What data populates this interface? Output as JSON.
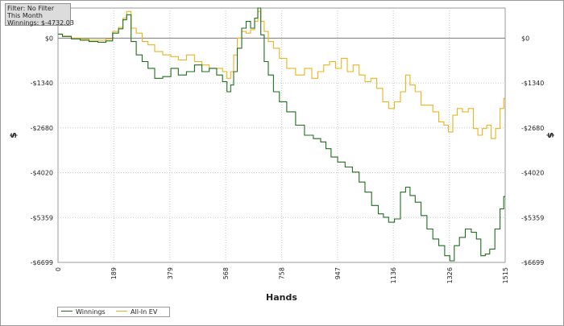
{
  "info": {
    "filter": "Filter: No Filter",
    "period": "This Month",
    "winnings": "Winnings: $-4732.03"
  },
  "chart_data": {
    "type": "line",
    "xlabel": "Hands",
    "ylabel": "$",
    "x_ticks": [
      0,
      189,
      379,
      568,
      758,
      947,
      1136,
      1326,
      1515
    ],
    "y_ticks": [
      0,
      -1340,
      -2680,
      -4020,
      -5359,
      -6699
    ],
    "y_tick_labels": [
      "$0",
      "-$1340",
      "-$2680",
      "-$4020",
      "-$5359",
      "-$6699"
    ],
    "xlim": [
      0,
      1515
    ],
    "ylim": [
      -6699,
      900
    ],
    "grid": true,
    "legend_position": "bottom-left",
    "series": [
      {
        "name": "Winnings",
        "color": "#1e6e1e",
        "points": [
          [
            0,
            120
          ],
          [
            30,
            50
          ],
          [
            60,
            -20
          ],
          [
            90,
            -60
          ],
          [
            120,
            -100
          ],
          [
            150,
            -120
          ],
          [
            175,
            -80
          ],
          [
            195,
            150
          ],
          [
            215,
            280
          ],
          [
            225,
            550
          ],
          [
            240,
            700
          ],
          [
            255,
            -100
          ],
          [
            275,
            -500
          ],
          [
            295,
            -700
          ],
          [
            315,
            -900
          ],
          [
            340,
            -1200
          ],
          [
            370,
            -1150
          ],
          [
            395,
            -900
          ],
          [
            420,
            -1100
          ],
          [
            450,
            -1000
          ],
          [
            475,
            -800
          ],
          [
            500,
            -1000
          ],
          [
            525,
            -900
          ],
          [
            550,
            -1100
          ],
          [
            565,
            -1300
          ],
          [
            580,
            -1600
          ],
          [
            590,
            -1400
          ],
          [
            600,
            -1000
          ],
          [
            615,
            -300
          ],
          [
            630,
            300
          ],
          [
            645,
            500
          ],
          [
            660,
            300
          ],
          [
            672,
            600
          ],
          [
            682,
            900
          ],
          [
            692,
            100
          ],
          [
            705,
            -700
          ],
          [
            720,
            -1100
          ],
          [
            740,
            -1600
          ],
          [
            760,
            -1900
          ],
          [
            790,
            -2200
          ],
          [
            820,
            -2600
          ],
          [
            850,
            -2900
          ],
          [
            880,
            -3000
          ],
          [
            900,
            -3100
          ],
          [
            915,
            -3300
          ],
          [
            935,
            -3550
          ],
          [
            960,
            -3700
          ],
          [
            985,
            -3850
          ],
          [
            1010,
            -4000
          ],
          [
            1030,
            -4300
          ],
          [
            1050,
            -4600
          ],
          [
            1075,
            -5000
          ],
          [
            1095,
            -5250
          ],
          [
            1110,
            -5350
          ],
          [
            1130,
            -5500
          ],
          [
            1150,
            -5400
          ],
          [
            1170,
            -4600
          ],
          [
            1185,
            -4450
          ],
          [
            1200,
            -4700
          ],
          [
            1220,
            -4900
          ],
          [
            1240,
            -5300
          ],
          [
            1260,
            -5700
          ],
          [
            1280,
            -6000
          ],
          [
            1300,
            -6200
          ],
          [
            1320,
            -6500
          ],
          [
            1335,
            -6650
          ],
          [
            1350,
            -6200
          ],
          [
            1370,
            -5950
          ],
          [
            1390,
            -5700
          ],
          [
            1410,
            -5800
          ],
          [
            1425,
            -6000
          ],
          [
            1440,
            -6500
          ],
          [
            1455,
            -6450
          ],
          [
            1470,
            -6300
          ],
          [
            1490,
            -5700
          ],
          [
            1505,
            -5100
          ],
          [
            1515,
            -4732
          ]
        ]
      },
      {
        "name": "All-In EV",
        "color": "#e8b420",
        "points": [
          [
            0,
            120
          ],
          [
            30,
            60
          ],
          [
            60,
            0
          ],
          [
            90,
            -20
          ],
          [
            120,
            -60
          ],
          [
            150,
            -60
          ],
          [
            175,
            -20
          ],
          [
            195,
            200
          ],
          [
            215,
            320
          ],
          [
            225,
            600
          ],
          [
            240,
            800
          ],
          [
            255,
            300
          ],
          [
            275,
            150
          ],
          [
            295,
            -100
          ],
          [
            315,
            -200
          ],
          [
            340,
            -400
          ],
          [
            370,
            -500
          ],
          [
            395,
            -550
          ],
          [
            420,
            -650
          ],
          [
            450,
            -500
          ],
          [
            475,
            -700
          ],
          [
            500,
            -800
          ],
          [
            525,
            -900
          ],
          [
            550,
            -900
          ],
          [
            565,
            -1000
          ],
          [
            580,
            -1200
          ],
          [
            590,
            -1000
          ],
          [
            600,
            -500
          ],
          [
            615,
            0
          ],
          [
            630,
            200
          ],
          [
            645,
            150
          ],
          [
            660,
            250
          ],
          [
            672,
            500
          ],
          [
            682,
            800
          ],
          [
            692,
            500
          ],
          [
            705,
            200
          ],
          [
            720,
            -100
          ],
          [
            740,
            -300
          ],
          [
            760,
            -600
          ],
          [
            790,
            -900
          ],
          [
            820,
            -1100
          ],
          [
            850,
            -900
          ],
          [
            870,
            -1200
          ],
          [
            890,
            -1000
          ],
          [
            910,
            -800
          ],
          [
            930,
            -700
          ],
          [
            950,
            -900
          ],
          [
            970,
            -600
          ],
          [
            990,
            -1000
          ],
          [
            1010,
            -800
          ],
          [
            1030,
            -1100
          ],
          [
            1050,
            -1300
          ],
          [
            1070,
            -1200
          ],
          [
            1090,
            -1500
          ],
          [
            1110,
            -1900
          ],
          [
            1130,
            -2100
          ],
          [
            1150,
            -1900
          ],
          [
            1170,
            -1600
          ],
          [
            1185,
            -1100
          ],
          [
            1200,
            -1400
          ],
          [
            1220,
            -1600
          ],
          [
            1240,
            -2000
          ],
          [
            1260,
            -2000
          ],
          [
            1280,
            -2200
          ],
          [
            1300,
            -2500
          ],
          [
            1315,
            -2600
          ],
          [
            1330,
            -2800
          ],
          [
            1345,
            -2300
          ],
          [
            1360,
            -2100
          ],
          [
            1380,
            -2200
          ],
          [
            1400,
            -2100
          ],
          [
            1415,
            -2700
          ],
          [
            1430,
            -2900
          ],
          [
            1445,
            -2700
          ],
          [
            1460,
            -2600
          ],
          [
            1475,
            -3000
          ],
          [
            1490,
            -2700
          ],
          [
            1505,
            -2100
          ],
          [
            1515,
            -1800
          ]
        ]
      }
    ]
  },
  "legend": {
    "winnings": "Winnings",
    "allin": "All-In EV"
  }
}
